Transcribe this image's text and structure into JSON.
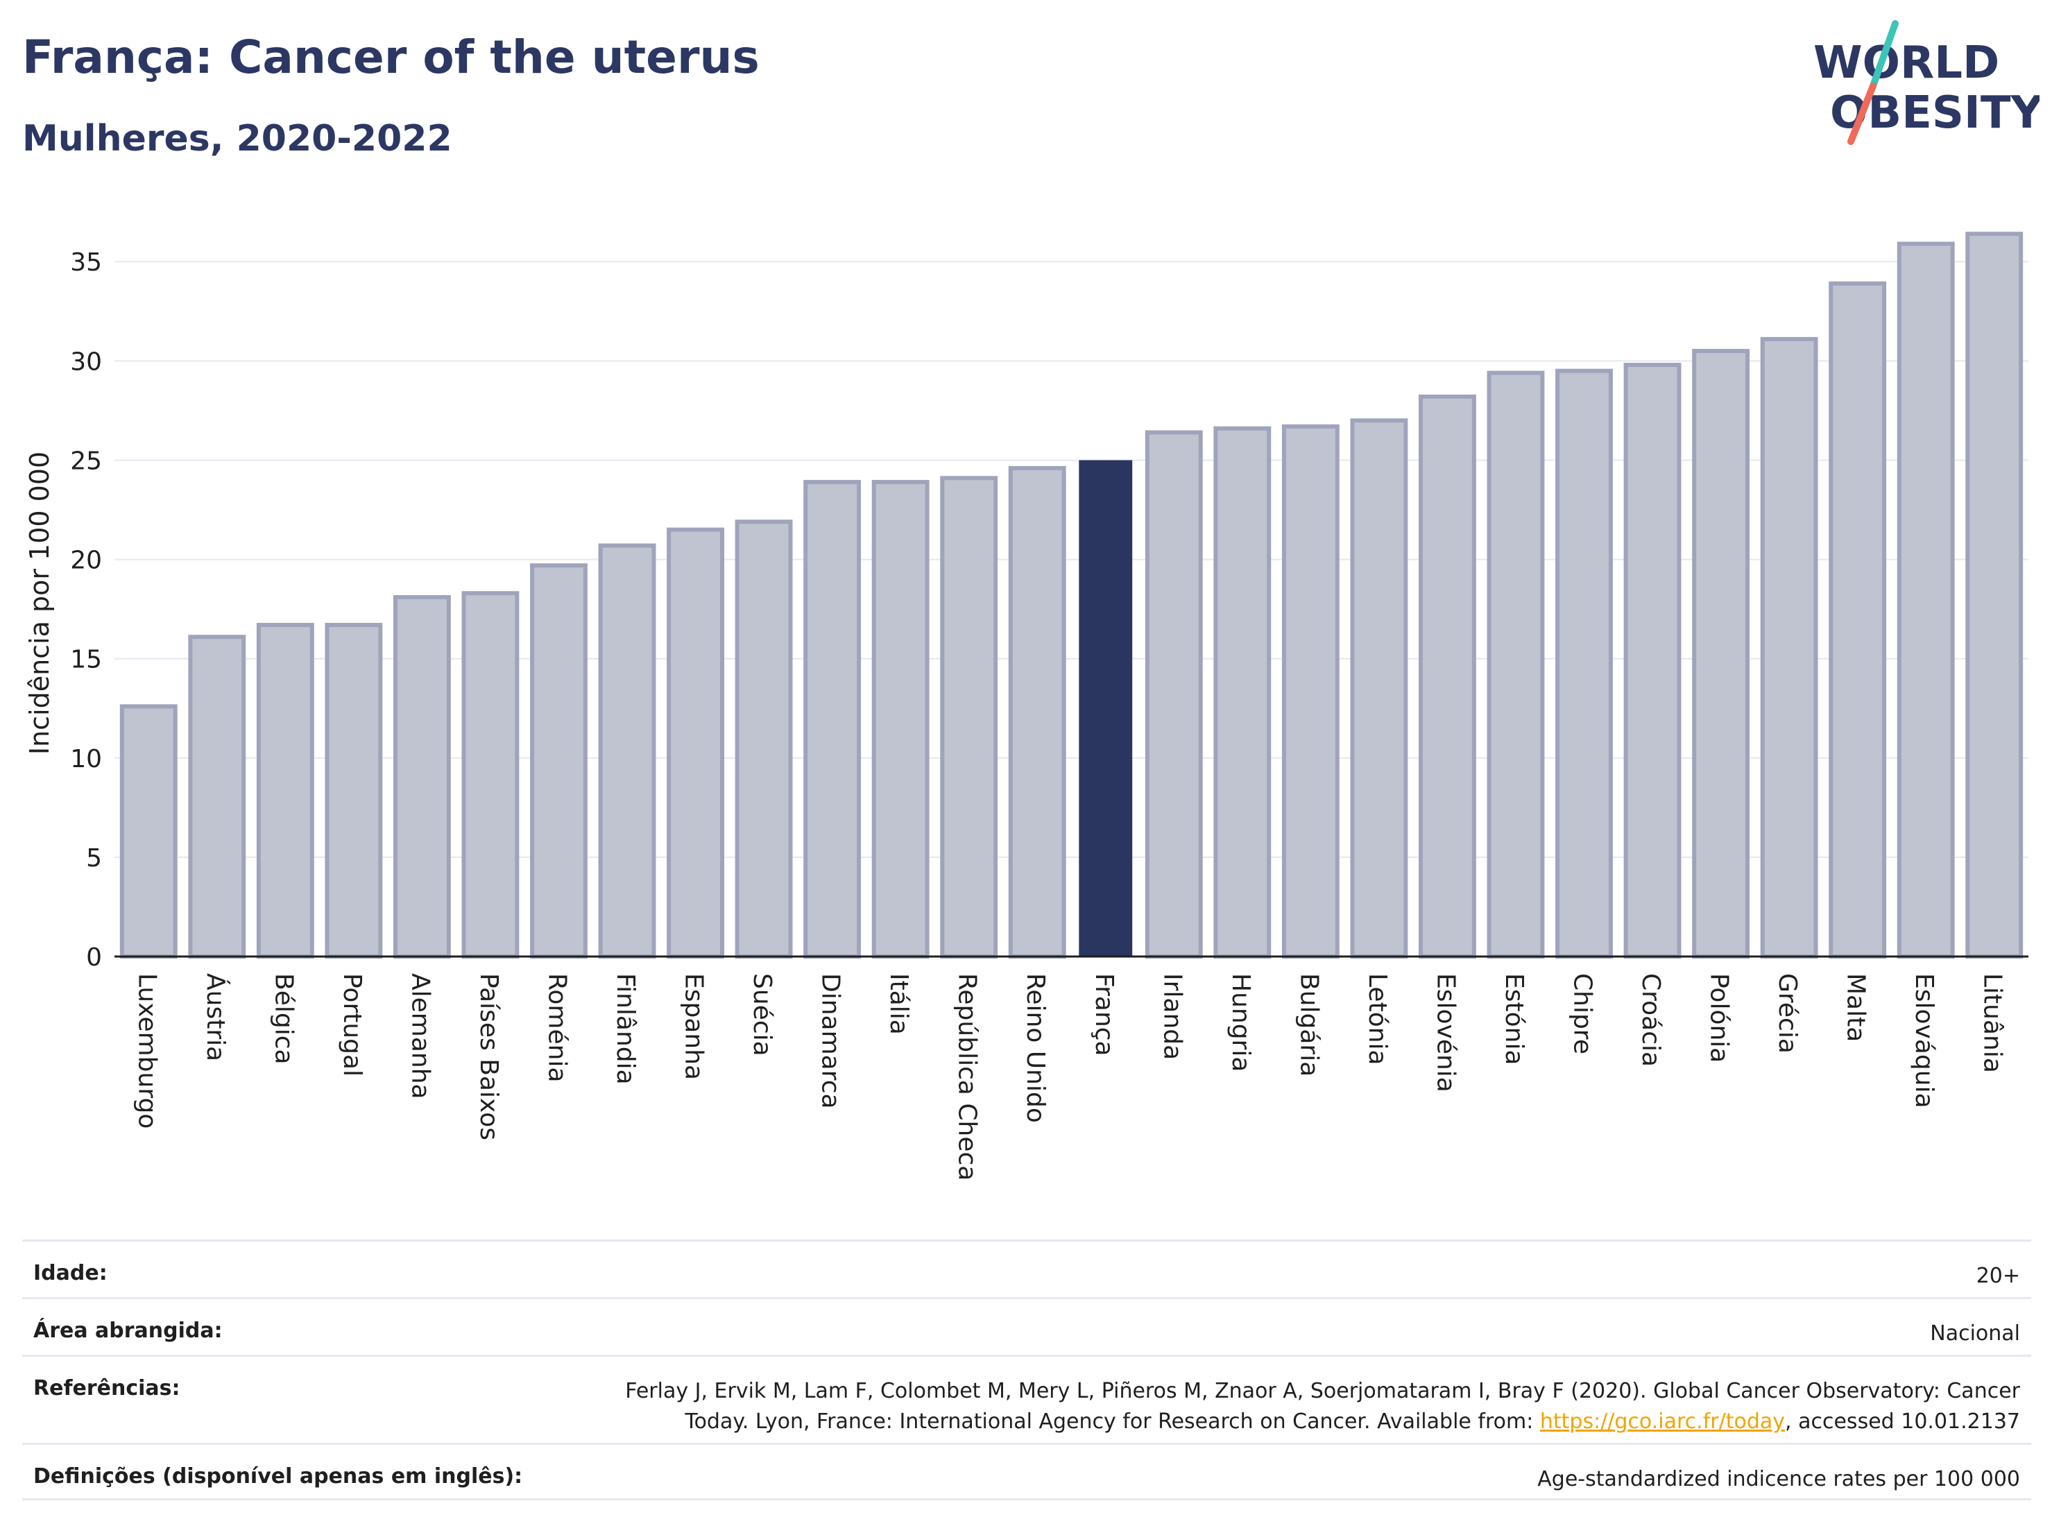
{
  "header": {
    "title": "França: Cancer of the uterus",
    "subtitle": "Mulheres, 2020-2022"
  },
  "logo": {
    "line1": "WORLD",
    "line2": "OBESITY"
  },
  "colors": {
    "highlight": "#2a3560",
    "bar_fill": "#c0c3d0",
    "bar_stroke": "#9fa4bb",
    "grid": "#e6e8f0",
    "axis_text": "#1f1f1f",
    "link": "#f0a500",
    "logo_text": "#2c3763",
    "logo_slash_top": "#3cc4b8",
    "logo_slash_bottom": "#ef6a5a"
  },
  "chart_data": {
    "type": "bar",
    "ylabel": "Incidência por 100 000",
    "xlabel": "",
    "ylim": [
      0,
      37
    ],
    "yticks": [
      0,
      5,
      10,
      15,
      20,
      25,
      30,
      35
    ],
    "grid": true,
    "highlight_category": "França",
    "categories": [
      "Luxemburgo",
      "Áustria",
      "Bélgica",
      "Portugal",
      "Alemanha",
      "Países Baixos",
      "Roménia",
      "Finlândia",
      "Espanha",
      "Suécia",
      "Dinamarca",
      "Itália",
      "República Checa",
      "Reino Unido",
      "França",
      "Irlanda",
      "Hungria",
      "Bulgária",
      "Letónia",
      "Eslovénia",
      "Estónia",
      "Chipre",
      "Croácia",
      "Polónia",
      "Grécia",
      "Malta",
      "Eslováquia",
      "Lituânia"
    ],
    "values": [
      12.6,
      16.1,
      16.7,
      16.7,
      18.1,
      18.3,
      19.7,
      20.7,
      21.5,
      21.9,
      23.9,
      23.9,
      24.1,
      24.6,
      25.0,
      26.4,
      26.6,
      26.7,
      27.0,
      28.2,
      29.4,
      29.5,
      29.8,
      30.5,
      31.1,
      33.9,
      35.9,
      36.4
    ]
  },
  "meta": {
    "rows": [
      {
        "label": "Idade:",
        "value": "20+"
      },
      {
        "label": "Área abrangida:",
        "value": "Nacional"
      }
    ],
    "references": {
      "label": "Referências:",
      "line1": "Ferlay J, Ervik M, Lam F, Colombet M, Mery L, Piñeros M, Znaor A, Soerjomataram I, Bray F (2020). Global Cancer Observatory: Cancer",
      "line2_prefix": "Today. Lyon, France: International Agency for Research on Cancer. Available from: ",
      "link": "https://gco.iarc.fr/today",
      "line2_suffix": ", accessed 10.01.2137"
    },
    "definitions": {
      "label": "Definições (disponível apenas em inglês):",
      "value": "Age-standardized indicence rates per 100 000"
    }
  }
}
